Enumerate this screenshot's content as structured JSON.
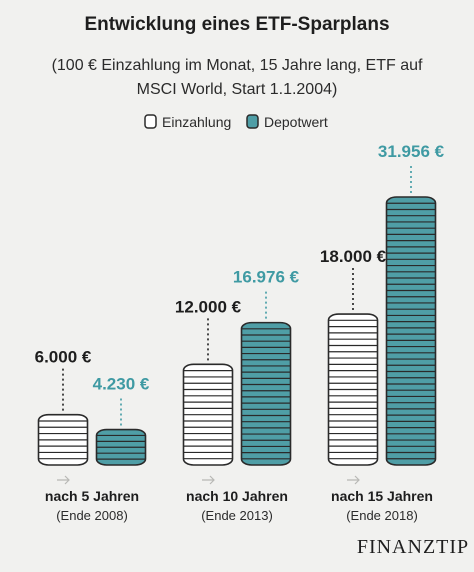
{
  "chart_data": {
    "type": "bar",
    "title": "Entwicklung eines ETF-Sparplans",
    "subtitle_lines": [
      "(100 € Einzahlung im Monat, 15 Jahre lang, ETF auf",
      "MSCI World, Start 1.1.2004)"
    ],
    "categories": [
      "nach 5 Jahren",
      "nach 10 Jahren",
      "nach 15 Jahren"
    ],
    "category_sublabels": [
      "(Ende 2008)",
      "(Ende 2013)",
      "(Ende 2018)"
    ],
    "series": [
      {
        "name": "Einzahlung",
        "values": [
          6000,
          12000,
          18000
        ],
        "labels": [
          "6.000 €",
          "12.000 €",
          "18.000 €"
        ],
        "color": "#ffffff"
      },
      {
        "name": "Depotwert",
        "values": [
          4230,
          16976,
          31956
        ],
        "labels": [
          "4.230 €",
          "16.976 €",
          "31.956 €"
        ],
        "color": "#4f9ea6"
      }
    ],
    "legend_position": "top-center",
    "ylim": [
      0,
      35000
    ],
    "grid": false
  },
  "colors": {
    "background": "#f1f1ef",
    "teal": "#4f9ea6",
    "teal_text": "#3f9aa3",
    "stroke": "#2a2a2a"
  },
  "brand": "FINANZTIP"
}
